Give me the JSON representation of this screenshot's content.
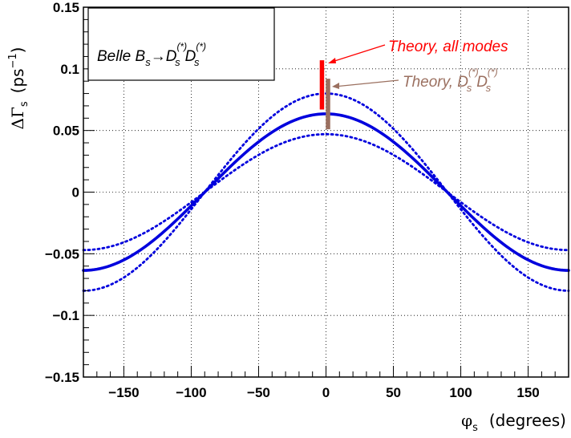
{
  "chart_data": {
    "type": "line",
    "xlabel": {
      "symbol": "φ",
      "sub": "s",
      "unit": "(degrees)"
    },
    "ylabel": {
      "symbol": "ΔΓ",
      "sub": "s",
      "unit_open": "(ps",
      "unit_sup": "−1",
      "unit_close": ")"
    },
    "xlim": [
      -180,
      180
    ],
    "ylim": [
      -0.15,
      0.15
    ],
    "xticks": [
      -150,
      -100,
      -50,
      0,
      50,
      100,
      150
    ],
    "xtick_labels": [
      "−150",
      "−100",
      "−50",
      "0",
      "50",
      "100",
      "150"
    ],
    "yticks": [
      -0.15,
      -0.1,
      -0.05,
      0,
      0.05,
      0.1,
      0.15
    ],
    "ytick_labels": [
      "−0.15",
      "−0.1",
      "−0.05",
      "0",
      "0.05",
      "0.1",
      "0.15"
    ],
    "grid": true,
    "series": [
      {
        "style": "solid",
        "color": "#0000dd",
        "amplitude": 0.0635,
        "function": "amplitude*cos(phi)"
      },
      {
        "style": "dotted",
        "color": "#0000dd",
        "amplitude": 0.08,
        "function": "amplitude*cos(phi)"
      },
      {
        "style": "dotted",
        "color": "#0000dd",
        "amplitude": 0.047,
        "function": "amplitude*cos(phi)"
      }
    ],
    "legend": {
      "placement": "top-left",
      "text": {
        "pre": "Belle B",
        "pre_sub": "s",
        "arrow": "→",
        "d1": "D",
        "d1_sub": "s",
        "d1_sup": "(*)",
        "d2": "D",
        "d2_sub": "s",
        "d2_sup": "(*)"
      }
    },
    "annotations": [
      {
        "id": "theory-all",
        "color": "#ff0000",
        "x": -3,
        "y_low": 0.067,
        "y_high": 0.107,
        "label": "Theory, all modes"
      },
      {
        "id": "theory-dsds",
        "color": "#9b7060",
        "x": 1.5,
        "y_low": 0.051,
        "y_high": 0.092,
        "label_pre": "Theory, ",
        "d1": "D",
        "d1_sub": "s",
        "d1_sup": "(*)",
        "d2": "D",
        "d2_sub": "s",
        "d2_sup": "(*)"
      }
    ]
  }
}
